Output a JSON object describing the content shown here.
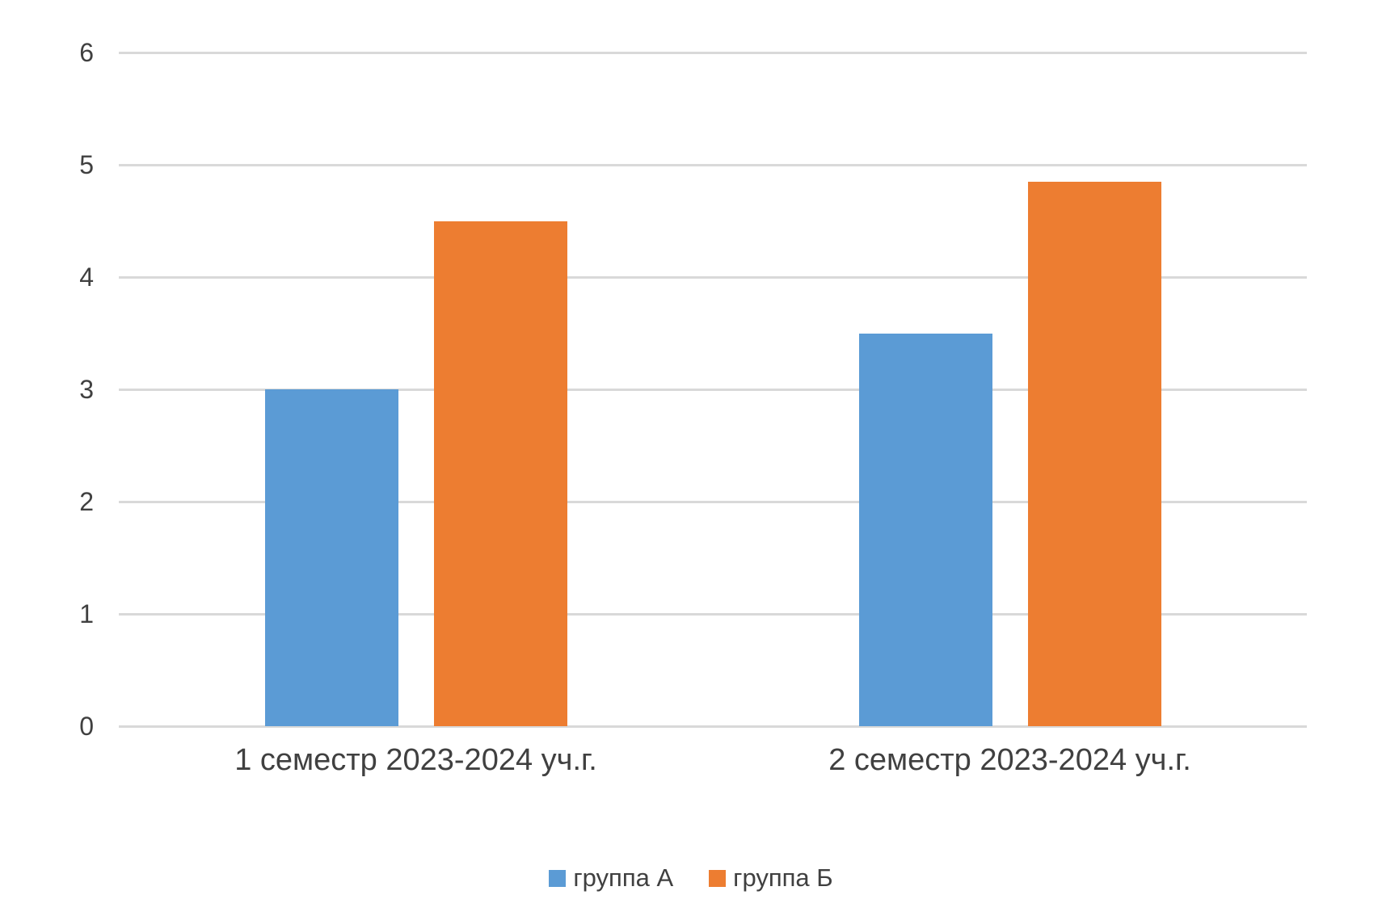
{
  "chart_data": {
    "type": "bar",
    "categories": [
      "1 семестр 2023-2024 уч.г.",
      "2 семестр 2023-2024 уч.г."
    ],
    "series": [
      {
        "name": "группа А",
        "color": "#5B9BD5",
        "values": [
          3,
          3.5
        ]
      },
      {
        "name": "группа Б",
        "color": "#ED7D31",
        "values": [
          4.5,
          4.85
        ]
      }
    ],
    "ylim": [
      0,
      6
    ],
    "yticks": [
      6,
      5,
      4,
      3,
      2,
      1,
      0
    ],
    "grid": true,
    "legend_position": "bottom",
    "gridline_color": "#D9D9D9",
    "text_color": "#404040",
    "background": "#FFFFFF"
  }
}
